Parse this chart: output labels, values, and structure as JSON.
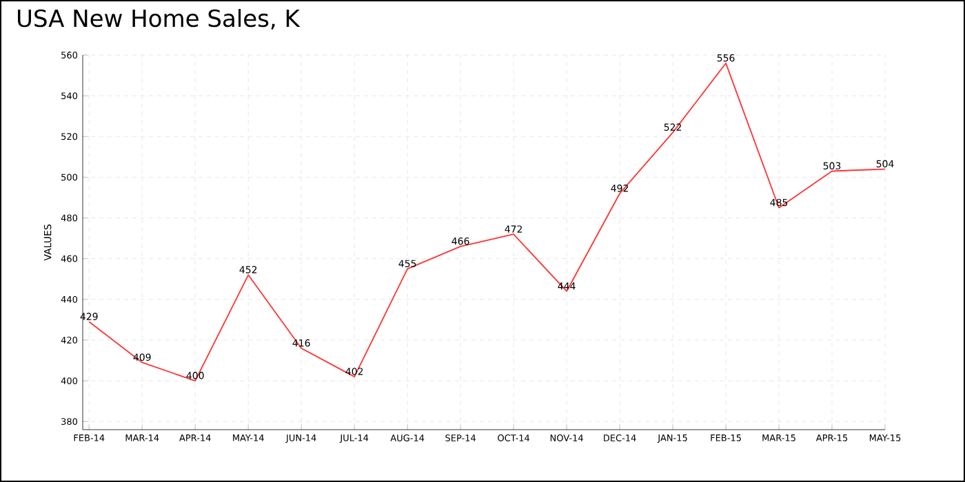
{
  "chart_data": {
    "type": "line",
    "title": "USA New Home Sales, K",
    "ylabel": "VALUES",
    "categories": [
      "FEB-14",
      "MAR-14",
      "APR-14",
      "MAY-14",
      "JUN-14",
      "JUL-14",
      "AUG-14",
      "SEP-14",
      "OCT-14",
      "NOV-14",
      "DEC-14",
      "JAN-15",
      "FEB-15",
      "MAR-15",
      "APR-15",
      "MAY-15"
    ],
    "values": [
      429,
      409,
      400,
      452,
      416,
      402,
      455,
      466,
      472,
      444,
      492,
      522,
      556,
      485,
      503,
      504
    ],
    "color": "#ff3333",
    "ylim": [
      376,
      560
    ],
    "yticks": [
      380,
      400,
      420,
      440,
      460,
      480,
      500,
      520,
      540,
      560
    ],
    "grid": true,
    "data_labels": true,
    "marker": "none",
    "line_style": "solid"
  }
}
